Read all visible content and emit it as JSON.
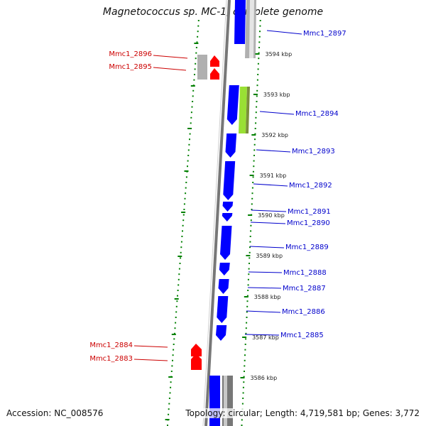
{
  "title": "Magnetococcus sp. MC-1, complete genome",
  "accession": "Accession: NC_008576",
  "topology": "Topology: circular; Length: 4,719,581 bp; Genes: 3,772",
  "colors": {
    "forward_gene": "#0000ff",
    "reverse_gene": "#ff0000",
    "pseudo_gene": "#b0b0b0",
    "highlight_gene": "#99e034",
    "ruler_tick": "#008000",
    "blue_label": "#0000cc",
    "red_label": "#cc0000"
  },
  "ruler": [
    {
      "label": "3594 kbp"
    },
    {
      "label": "3593 kbp"
    },
    {
      "label": "3592 kbp"
    },
    {
      "label": "3591 kbp"
    },
    {
      "label": "3590 kbp"
    },
    {
      "label": "3589 kbp"
    },
    {
      "label": "3588 kbp"
    },
    {
      "label": "3587 kbp"
    },
    {
      "label": "3586 kbp"
    }
  ],
  "genes_right": [
    {
      "label": "Mmc1_2897"
    },
    {
      "label": "Mmc1_2894"
    },
    {
      "label": "Mmc1_2893"
    },
    {
      "label": "Mmc1_2892"
    },
    {
      "label": "Mmc1_2891"
    },
    {
      "label": "Mmc1_2890"
    },
    {
      "label": "Mmc1_2889"
    },
    {
      "label": "Mmc1_2888"
    },
    {
      "label": "Mmc1_2887"
    },
    {
      "label": "Mmc1_2886"
    },
    {
      "label": "Mmc1_2885"
    }
  ],
  "genes_left": [
    {
      "label": "Mmc1_2896"
    },
    {
      "label": "Mmc1_2895"
    },
    {
      "label": "Mmc1_2884"
    },
    {
      "label": "Mmc1_2883"
    }
  ]
}
